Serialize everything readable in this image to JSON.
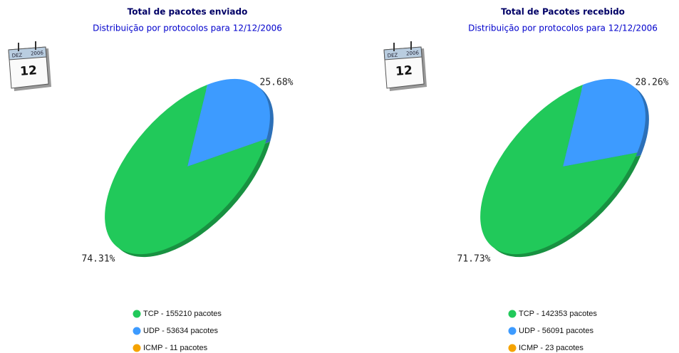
{
  "chart_data": [
    {
      "type": "pie",
      "title": "Total de pacotes enviado",
      "subtitle": "Distribuição por protocolos para 12/12/2006",
      "calendar": {
        "month": "DEZ",
        "year": "2006",
        "day": "12"
      },
      "categories": [
        "TCP - 155210 pacotes",
        "UDP - 53634 pacotes",
        "ICMP - 11 pacotes"
      ],
      "values": [
        74.31,
        25.68,
        0.01
      ],
      "value_labels": [
        "74.31%",
        "25.68%",
        null
      ],
      "colors": [
        "#21c95a",
        "#3d9bff",
        "#f5a300"
      ]
    },
    {
      "type": "pie",
      "title": "Total de Pacotes recebido",
      "subtitle": "Distribuição por protocolos para 12/12/2006",
      "calendar": {
        "month": "DEZ",
        "year": "2006",
        "day": "12"
      },
      "categories": [
        "TCP - 142353 pacotes",
        "UDP - 56091 pacotes",
        "ICMP - 23 pacotes"
      ],
      "values": [
        71.73,
        28.26,
        0.01
      ],
      "value_labels": [
        "71.73%",
        "28.26%",
        null
      ],
      "colors": [
        "#21c95a",
        "#3d9bff",
        "#f5a300"
      ]
    }
  ]
}
